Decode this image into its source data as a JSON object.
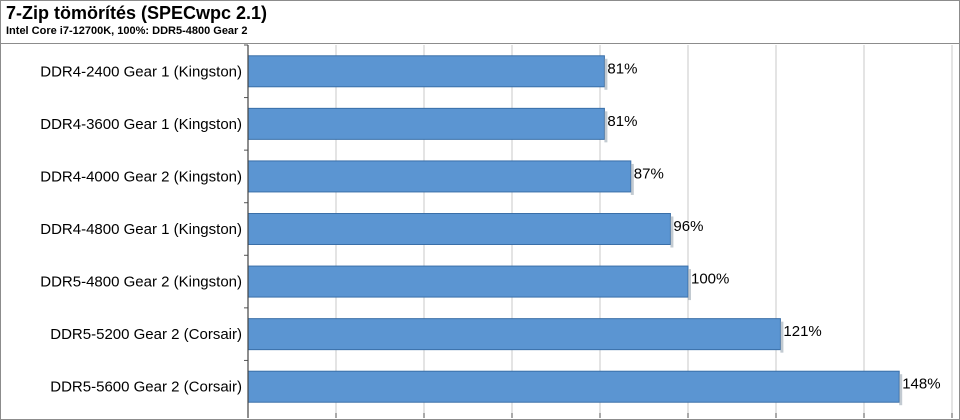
{
  "header": {
    "title": "7-Zip tömörítés (SPECwpc 2.1)",
    "subtitle": "Intel Core i7-12700K, 100%: DDR5-4800 Gear 2"
  },
  "chart_data": {
    "type": "bar",
    "orientation": "horizontal",
    "title": "7-Zip tömörítés (SPECwpc 2.1)",
    "subtitle": "Intel Core i7-12700K, 100%: DDR5-4800 Gear 2",
    "categories": [
      "DDR4-2400 Gear 1 (Kingston)",
      "DDR4-3600 Gear 1 (Kingston)",
      "DDR4-4000 Gear 2 (Kingston)",
      "DDR4-4800 Gear 1 (Kingston)",
      "DDR5-4800 Gear 2 (Kingston)",
      "DDR5-5200 Gear 2 (Corsair)",
      "DDR5-5600 Gear 2 (Corsair)"
    ],
    "values": [
      81,
      81,
      87,
      96,
      100,
      121,
      148
    ],
    "value_labels": [
      "81%",
      "81%",
      "87%",
      "96%",
      "100%",
      "121%",
      "148%"
    ],
    "unit": "%",
    "xlim": [
      0,
      160
    ],
    "grid_step": 20,
    "grid": true,
    "legend": "none",
    "bar_color": "#5b95d2",
    "bar_edge_color": "#3a6fa8",
    "grid_color": "#c8c8c8"
  }
}
